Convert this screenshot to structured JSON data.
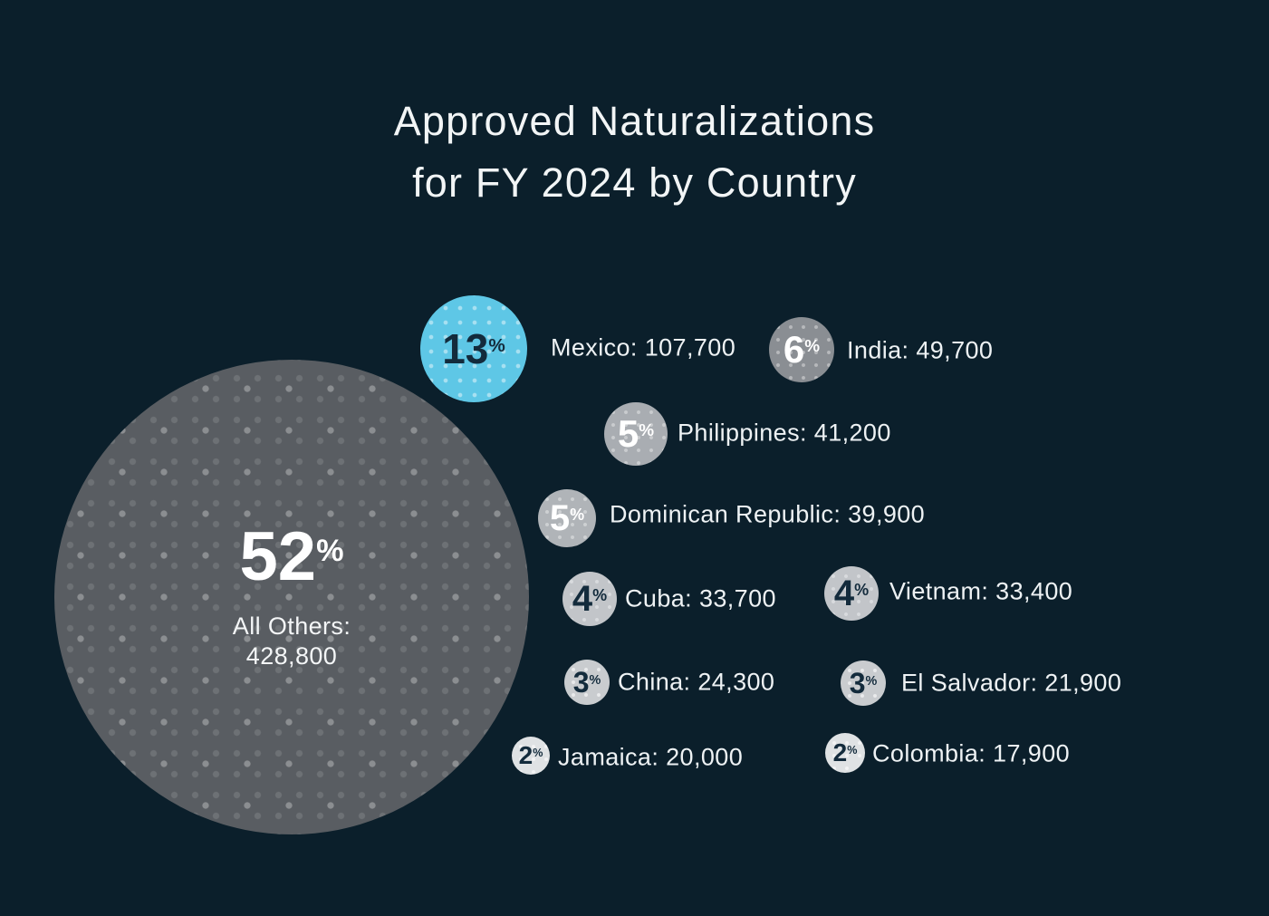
{
  "title": {
    "line1": "Approved Naturalizations",
    "line2": "for FY 2024 by Country"
  },
  "symbols": {
    "percent": "%"
  },
  "colors": {
    "background": "#0b1f2b",
    "accent_cyan": "#5ec7e6",
    "bubble_gray_52": "#595d62",
    "bubble_gray_6": "#8a8e93",
    "bubble_gray_5": "#aeb2b6",
    "bubble_gray_4": "#c2c5c9",
    "bubble_gray_3": "#c9cccf",
    "bubble_gray_2": "#dfe2e4",
    "dark_text": "#132b3c",
    "light_text": "#f2f5f6"
  },
  "bubbles": [
    {
      "id": "all-others",
      "pct": "52",
      "line1": "All Others:",
      "line2": "428,800"
    },
    {
      "id": "mexico",
      "pct": "13",
      "label": "Mexico: 107,700"
    },
    {
      "id": "india",
      "pct": "6",
      "label": "India: 49,700"
    },
    {
      "id": "philippines",
      "pct": "5",
      "label": "Philippines: 41,200"
    },
    {
      "id": "dominican-republic",
      "pct": "5",
      "label": "Dominican Republic: 39,900"
    },
    {
      "id": "cuba",
      "pct": "4",
      "label": "Cuba: 33,700"
    },
    {
      "id": "vietnam",
      "pct": "4",
      "label": "Vietnam: 33,400"
    },
    {
      "id": "china",
      "pct": "3",
      "label": "China: 24,300"
    },
    {
      "id": "el-salvador",
      "pct": "3",
      "label": "El Salvador: 21,900"
    },
    {
      "id": "jamaica",
      "pct": "2",
      "label": "Jamaica: 20,000"
    },
    {
      "id": "colombia",
      "pct": "2",
      "label": "Colombia: 17,900"
    }
  ],
  "chart_data": {
    "type": "bubble",
    "title": "Approved Naturalizations for FY 2024 by Country",
    "categories": [
      "All Others",
      "Mexico",
      "India",
      "Philippines",
      "Dominican Republic",
      "Cuba",
      "Vietnam",
      "China",
      "El Salvador",
      "Jamaica",
      "Colombia"
    ],
    "values": [
      428800,
      107700,
      49700,
      41200,
      39900,
      33700,
      33400,
      24300,
      21900,
      20000,
      17900
    ],
    "percents": [
      52,
      13,
      6,
      5,
      5,
      4,
      4,
      3,
      3,
      2,
      2
    ],
    "highlight_category": "Mexico",
    "bubble_area_encodes": "percent of total approved naturalizations",
    "legend_position": "none",
    "grid": false
  }
}
